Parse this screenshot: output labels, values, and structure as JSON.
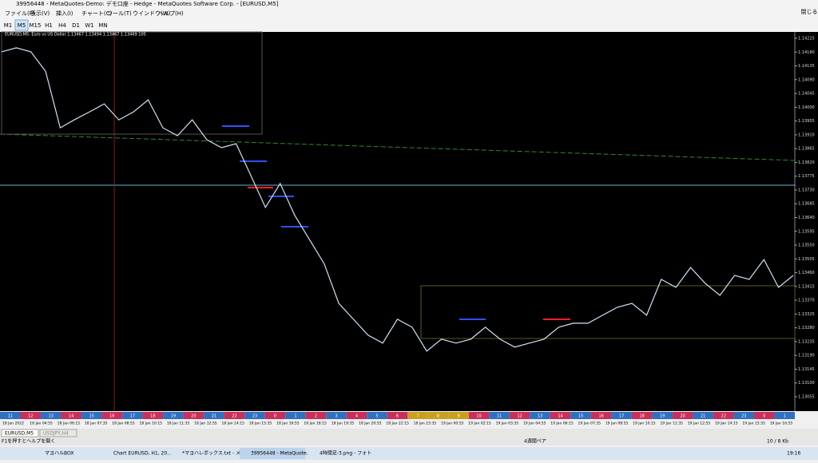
{
  "window": {
    "title": "39956448 - MetaQuotes-Demo: デモ口座 - Hedge - MetaQuotes Software Corp. - [EURUSD,M5]",
    "menu": [
      "ファイル(F)",
      "表示(V)",
      "挿入(I)",
      "チャート(C)",
      "ツール(T)",
      "ウインドウ(W)",
      "ヘルプ(H)"
    ],
    "close_label": "閉じる"
  },
  "toolbar": {
    "timeframes": [
      "M1",
      "M5",
      "M15",
      "H1",
      "H4",
      "D1",
      "W1",
      "MN"
    ]
  },
  "chart_data": {
    "type": "line",
    "title": "EURUSD,M5: Euro vs US Dollar 1.13467 1.13494 1.13467 1.13469 105",
    "color": "#cfe3f5",
    "values": [
      1.14181,
      1.14194,
      1.14181,
      1.14117,
      1.13933,
      1.1396,
      1.13985,
      1.14011,
      1.13959,
      1.13985,
      1.14024,
      1.13933,
      1.13907,
      1.13959,
      1.13894,
      1.13868,
      1.13881,
      1.13777,
      1.13673,
      1.13751,
      1.13647,
      1.13568,
      1.1349,
      1.1336,
      1.13308,
      1.13256,
      1.1323,
      1.13308,
      1.13282,
      1.13204,
      1.13243,
      1.1323,
      1.13243,
      1.13282,
      1.13243,
      1.13217,
      1.1323,
      1.13243,
      1.13282,
      1.13295,
      1.13295,
      1.13321,
      1.13347,
      1.1336,
      1.13321,
      1.13438,
      1.13412,
      1.13477,
      1.13425,
      1.13386,
      1.13451,
      1.13438,
      1.13503,
      1.13412,
      1.13451
    ],
    "ylim": [
      1.13055,
      1.14225
    ],
    "yticks": [
      {
        "value": 1.13055,
        "label": "1.13055"
      },
      {
        "value": 1.131,
        "label": "1.13100"
      },
      {
        "value": 1.13145,
        "label": "1.13145"
      },
      {
        "value": 1.1319,
        "label": "1.13190"
      },
      {
        "value": 1.13235,
        "label": "1.13235"
      },
      {
        "value": 1.1328,
        "label": "1.13280"
      },
      {
        "value": 1.13325,
        "label": "1.13325"
      },
      {
        "value": 1.1337,
        "label": "1.13370"
      },
      {
        "value": 1.13415,
        "label": "1.13415"
      },
      {
        "value": 1.1346,
        "label": "1.13460"
      },
      {
        "value": 1.13505,
        "label": "1.13505"
      },
      {
        "value": 1.1355,
        "label": "1.13550"
      },
      {
        "value": 1.13595,
        "label": "1.13595"
      },
      {
        "value": 1.1364,
        "label": "1.13640"
      },
      {
        "value": 1.13685,
        "label": "1.13685"
      },
      {
        "value": 1.1373,
        "label": "1.13730"
      },
      {
        "value": 1.13775,
        "label": "1.13775"
      },
      {
        "value": 1.1382,
        "label": "1.13820"
      },
      {
        "value": 1.13865,
        "label": "1.13865"
      },
      {
        "value": 1.1391,
        "label": "1.13910"
      },
      {
        "value": 1.13955,
        "label": "1.13955"
      },
      {
        "value": 1.14,
        "label": "1.14000"
      },
      {
        "value": 1.14045,
        "label": "1.14045"
      },
      {
        "value": 1.1409,
        "label": "1.14090"
      },
      {
        "value": 1.14135,
        "label": "1.14135"
      },
      {
        "value": 1.1418,
        "label": "1.14180"
      },
      {
        "value": 1.14225,
        "label": "1.14225"
      }
    ],
    "grid": false
  },
  "time_axis": [
    "18 Jan 2022",
    "18 Jan 04:55",
    "18 Jan 06:15",
    "18 Jan 07:35",
    "18 Jan 08:55",
    "18 Jan 10:15",
    "18 Jan 11:35",
    "18 Jan 12:55",
    "18 Jan 14:15",
    "18 Jan 15:35",
    "18 Jan 16:55",
    "18 Jan 18:15",
    "18 Jan 19:35",
    "18 Jan 20:55",
    "18 Jan 22:15",
    "18 Jan 23:35",
    "19 Jan 00:55",
    "19 Jan 02:15",
    "19 Jan 03:35",
    "19 Jan 04:55",
    "19 Jan 06:15",
    "19 Jan 07:35",
    "19 Jan 08:55",
    "19 Jan 10:15",
    "19 Jan 11:35",
    "19 Jan 12:55",
    "19 Jan 14:15",
    "19 Jan 15:35",
    "19 Jan 16:55"
  ],
  "hour_strip": [
    "11",
    "12",
    "13",
    "14",
    "15",
    "16",
    "17",
    "18",
    "19",
    "20",
    "21",
    "22",
    "23",
    "0",
    "1",
    "2",
    "3",
    "4",
    "5",
    "6",
    "7",
    "8",
    "9",
    "10",
    "11",
    "12",
    "13",
    "14",
    "15",
    "16",
    "17",
    "18",
    "19",
    "20",
    "21",
    "22",
    "23",
    "0",
    "1"
  ],
  "tabs": [
    "EURUSD,M5",
    "USDJPY,H4"
  ],
  "status": {
    "help": "F1を押すとヘルプを開く",
    "profile": "4週間ペア",
    "traffic": "10 / 8 Kb"
  },
  "taskbar": {
    "items": [
      "マヨハルBOX",
      "Chart EURUSD, H1, 20...",
      "*マヨハレボックス.txt - メ...",
      "39956448 - MetaQuote...",
      "4時間足-3.png - フォト"
    ],
    "clock": "19:16"
  }
}
